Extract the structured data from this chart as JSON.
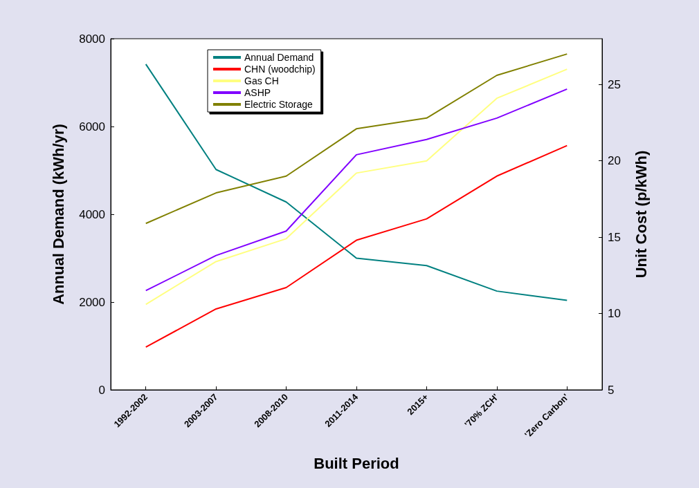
{
  "chart_data": {
    "type": "line",
    "xlabel": "Built Period",
    "ylabel": "Annual Demand (kWh/yr)",
    "y2label": "Unit Cost (p/kWh)",
    "categories": [
      "1992-2002",
      "2003-2007",
      "2008-2010",
      "2011-2014",
      "2015+",
      "'70% ZCH'",
      "'Zero Carbon'"
    ],
    "series": [
      {
        "name": "Annual Demand",
        "color": "#008080",
        "values": [
          7420,
          5020,
          4280,
          3000,
          2830,
          2250,
          2040
        ]
      },
      {
        "name": "CHN (woodchip)",
        "color": "#ff0000",
        "axis": "y2",
        "values": [
          7.8,
          10.3,
          11.7,
          14.8,
          16.2,
          19.0,
          21.0
        ]
      },
      {
        "name": "Gas CH",
        "color": "#ffff80",
        "axis": "y2",
        "values": [
          10.6,
          13.4,
          14.9,
          19.2,
          20.0,
          24.1,
          26.0
        ]
      },
      {
        "name": "ASHP",
        "color": "#8000ff",
        "axis": "y2",
        "values": [
          11.5,
          13.8,
          15.4,
          20.4,
          21.4,
          22.8,
          24.7
        ]
      },
      {
        "name": "Electric Storage",
        "color": "#808000",
        "axis": "y2",
        "values": [
          15.9,
          17.9,
          19.0,
          22.1,
          22.8,
          25.6,
          27.0
        ]
      }
    ],
    "ylim": [
      0,
      8000
    ],
    "yticks": [
      0,
      2000,
      4000,
      6000,
      8000
    ],
    "y2lim": [
      5,
      28
    ],
    "y2ticks": [
      5,
      10,
      15,
      20,
      25
    ],
    "legend": "top left",
    "grid": false,
    "marker": "none",
    "line_style": "solid"
  }
}
